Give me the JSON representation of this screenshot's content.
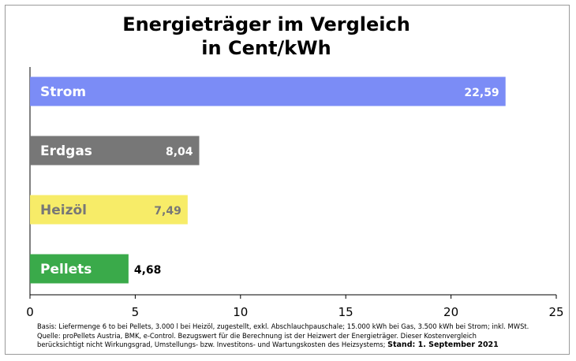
{
  "title_line1": "Energieträger im Vergleich",
  "title_line2": "in Cent/kWh",
  "chart_data": {
    "type": "bar",
    "orientation": "horizontal",
    "title": "Energieträger im Vergleich in Cent/kWh",
    "categories": [
      "Strom",
      "Erdgas",
      "Heizöl",
      "Pellets"
    ],
    "values": [
      22.59,
      8.04,
      7.49,
      4.68
    ],
    "value_labels": [
      "22,59",
      "8,04",
      "7,49",
      "4,68"
    ],
    "colors": [
      "#7b8cf6",
      "#777777",
      "#f7ec68",
      "#3aaa4a"
    ],
    "label_colors": [
      "#ffffff",
      "#ffffff",
      "#777777",
      "#ffffff"
    ],
    "value_label_colors": [
      "#ffffff",
      "#ffffff",
      "#777777",
      "#000000"
    ],
    "xlim": [
      0,
      25
    ],
    "xticks": [
      0,
      5,
      10,
      15,
      20,
      25
    ],
    "grid": false,
    "legend": "none"
  },
  "footnote": {
    "line1": "Basis: Liefermenge 6 to bei Pellets, 3.000 l bei Heizöl, zugestellt, exkl. Abschlauchpauschale; 15.000 kWh bei Gas, 3.500 kWh bei Strom; inkl. MWSt.",
    "line2": "Quelle: proPellets Austria, BMK, e-Control. Bezugswert für die Berechnung ist der Heizwert der Energieträger. Dieser Kostenvergleich",
    "line3": "berücksichtigt nicht Wirkungsgrad, Umstellungs- bzw. Investitons- und Wartungskosten des Heizsystems;",
    "stand": "Stand: 1. September 2021"
  }
}
